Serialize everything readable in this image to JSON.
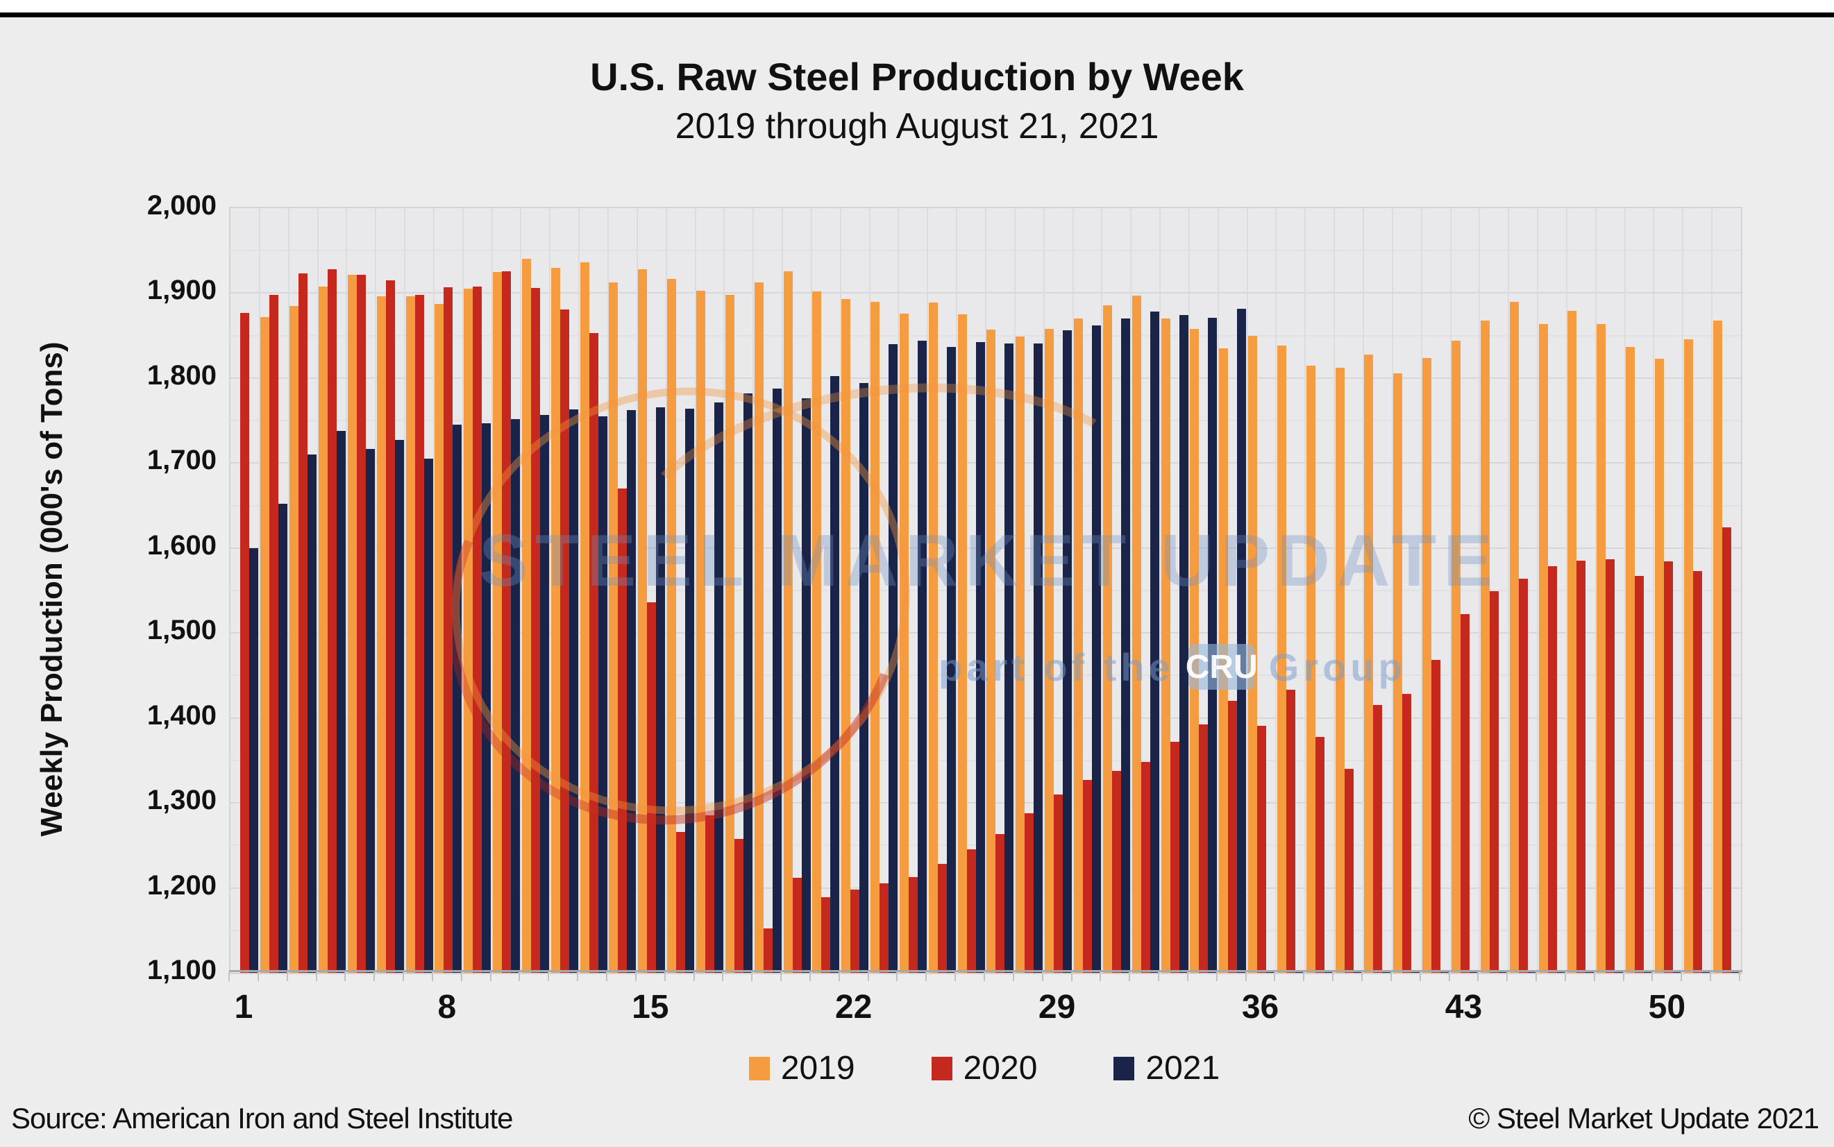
{
  "page": {
    "title": "U.S. Raw Steel Production by Week",
    "subtitle": "2019 through August 21, 2021",
    "source": "Source: American Iron and Steel Institute",
    "copyright": "© Steel Market Update 2021"
  },
  "watermark": {
    "line1": "STEEL MARKET UPDATE",
    "part_of": "part of the",
    "cru": "CRU",
    "group": "Group"
  },
  "chart_data": {
    "type": "bar",
    "title": "U.S. Raw Steel Production by Week",
    "subtitle": "2019 through August 21, 2021",
    "xlabel": "",
    "ylabel": "Weekly Production (000's of Tons)",
    "ylim": [
      1100,
      2000
    ],
    "ytick_step": 100,
    "minor_grid_step": 50,
    "grid": true,
    "legend_position": "bottom",
    "x_axis_labeled_ticks": [
      1,
      8,
      15,
      22,
      29,
      36,
      43,
      50
    ],
    "categories": [
      1,
      2,
      3,
      4,
      5,
      6,
      7,
      8,
      9,
      10,
      11,
      12,
      13,
      14,
      15,
      16,
      17,
      18,
      19,
      20,
      21,
      22,
      23,
      24,
      25,
      26,
      27,
      28,
      29,
      30,
      31,
      32,
      33,
      34,
      35,
      36,
      37,
      38,
      39,
      40,
      41,
      42,
      43,
      44,
      45,
      46,
      47,
      48,
      49,
      50,
      51,
      52
    ],
    "series": [
      {
        "name": "2019",
        "color": "#F59C41",
        "values": [
          null,
          1872,
          1885,
          1908,
          1922,
          1896,
          1896,
          1887,
          1905,
          1925,
          1940,
          1930,
          1936,
          1913,
          1928,
          1917,
          1903,
          1898,
          1913,
          1926,
          1902,
          1893,
          1890,
          1876,
          1889,
          1875,
          1857,
          1849,
          1858,
          1870,
          1886,
          1897,
          1870,
          1858,
          1835,
          1850,
          1838,
          1815,
          1812,
          1828,
          1806,
          1824,
          1844,
          1868,
          1890,
          1864,
          1879,
          1864,
          1837,
          1823,
          1846,
          1868
        ]
      },
      {
        "name": "2020",
        "color": "#C5281C",
        "values": [
          1877,
          1898,
          1923,
          1928,
          1922,
          1915,
          1898,
          1907,
          1908,
          1926,
          1906,
          1881,
          1853,
          1670,
          1536,
          1266,
          1285,
          1258,
          1152,
          1212,
          1189,
          1198,
          1205,
          1213,
          1228,
          1245,
          1263,
          1288,
          1310,
          1327,
          1338,
          1348,
          1372,
          1392,
          1420,
          1391,
          1433,
          1378,
          1340,
          1415,
          1428,
          1468,
          1522,
          1549,
          1564,
          1579,
          1585,
          1587,
          1567,
          1584,
          1573,
          1624
        ]
      },
      {
        "name": "2021",
        "color": "#1A2348",
        "values": [
          1600,
          1652,
          1710,
          1738,
          1717,
          1727,
          1705,
          1745,
          1747,
          1752,
          1757,
          1763,
          1755,
          1762,
          1766,
          1764,
          1771,
          1782,
          1788,
          1776,
          1802,
          1794,
          1840,
          1844,
          1837,
          1842,
          1841,
          1841,
          1856,
          1862,
          1870,
          1878,
          1874,
          1871,
          1882,
          0,
          0,
          0,
          0,
          0,
          0,
          0,
          0,
          0,
          0,
          0,
          0,
          0,
          0,
          0,
          0,
          0
        ]
      }
    ]
  }
}
